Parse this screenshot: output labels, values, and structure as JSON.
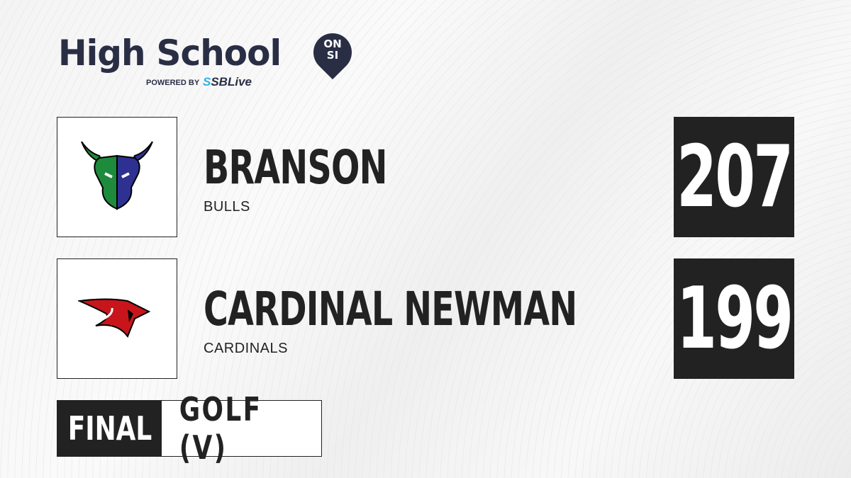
{
  "brand": {
    "title": "High School",
    "badge_top": "ON",
    "badge_bottom": "SI",
    "powered_by": "POWERED BY",
    "partner_prefix": "S",
    "partner": "SBLive"
  },
  "teams": [
    {
      "name": "BRANSON",
      "mascot": "BULLS",
      "score": "207",
      "logo": "bull-logo",
      "colors": [
        "#1e8a3c",
        "#2e3192"
      ]
    },
    {
      "name": "CARDINAL NEWMAN",
      "mascot": "CARDINALS",
      "score": "199",
      "logo": "cardinal-logo",
      "colors": [
        "#c8151b",
        "#000000"
      ]
    }
  ],
  "status": {
    "state": "FINAL",
    "sport": "GOLF (V)"
  }
}
